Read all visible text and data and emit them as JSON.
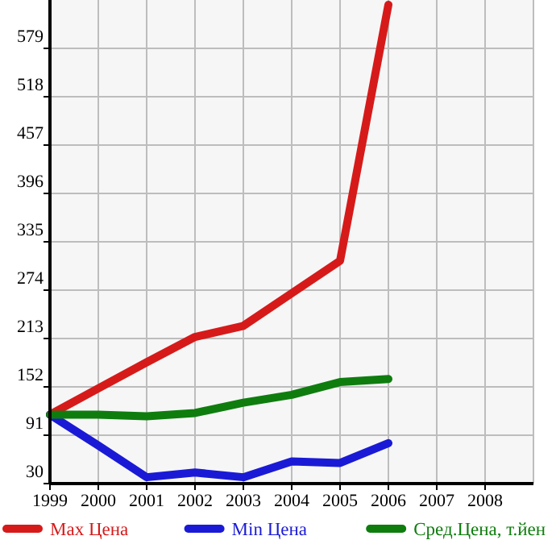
{
  "chart_data": {
    "type": "line",
    "x": [
      1999,
      2000,
      2001,
      2002,
      2003,
      2004,
      2005,
      2006
    ],
    "xlim": [
      1999,
      2009
    ],
    "xticks": [
      1999,
      2000,
      2001,
      2002,
      2003,
      2004,
      2005,
      2006,
      2007,
      2008
    ],
    "ylim": [
      30,
      640
    ],
    "yticks": [
      30,
      91,
      152,
      213,
      274,
      335,
      396,
      457,
      518,
      579
    ],
    "grid": true,
    "legend": "bottom",
    "marker": "none",
    "line_style": "solid",
    "series": [
      {
        "name": "Max Цена",
        "color": "#d61a1a",
        "values": [
          117,
          150,
          183,
          215,
          229,
          270,
          311,
          634
        ]
      },
      {
        "name": "Min Цена",
        "color": "#1a1ad6",
        "values": [
          117,
          78,
          38,
          44,
          38,
          58,
          56,
          81
        ]
      },
      {
        "name": "Сред.Цена, т.йен",
        "color": "#0e7d0e",
        "values": [
          117,
          117,
          115,
          119,
          132,
          142,
          158,
          162
        ]
      }
    ]
  }
}
